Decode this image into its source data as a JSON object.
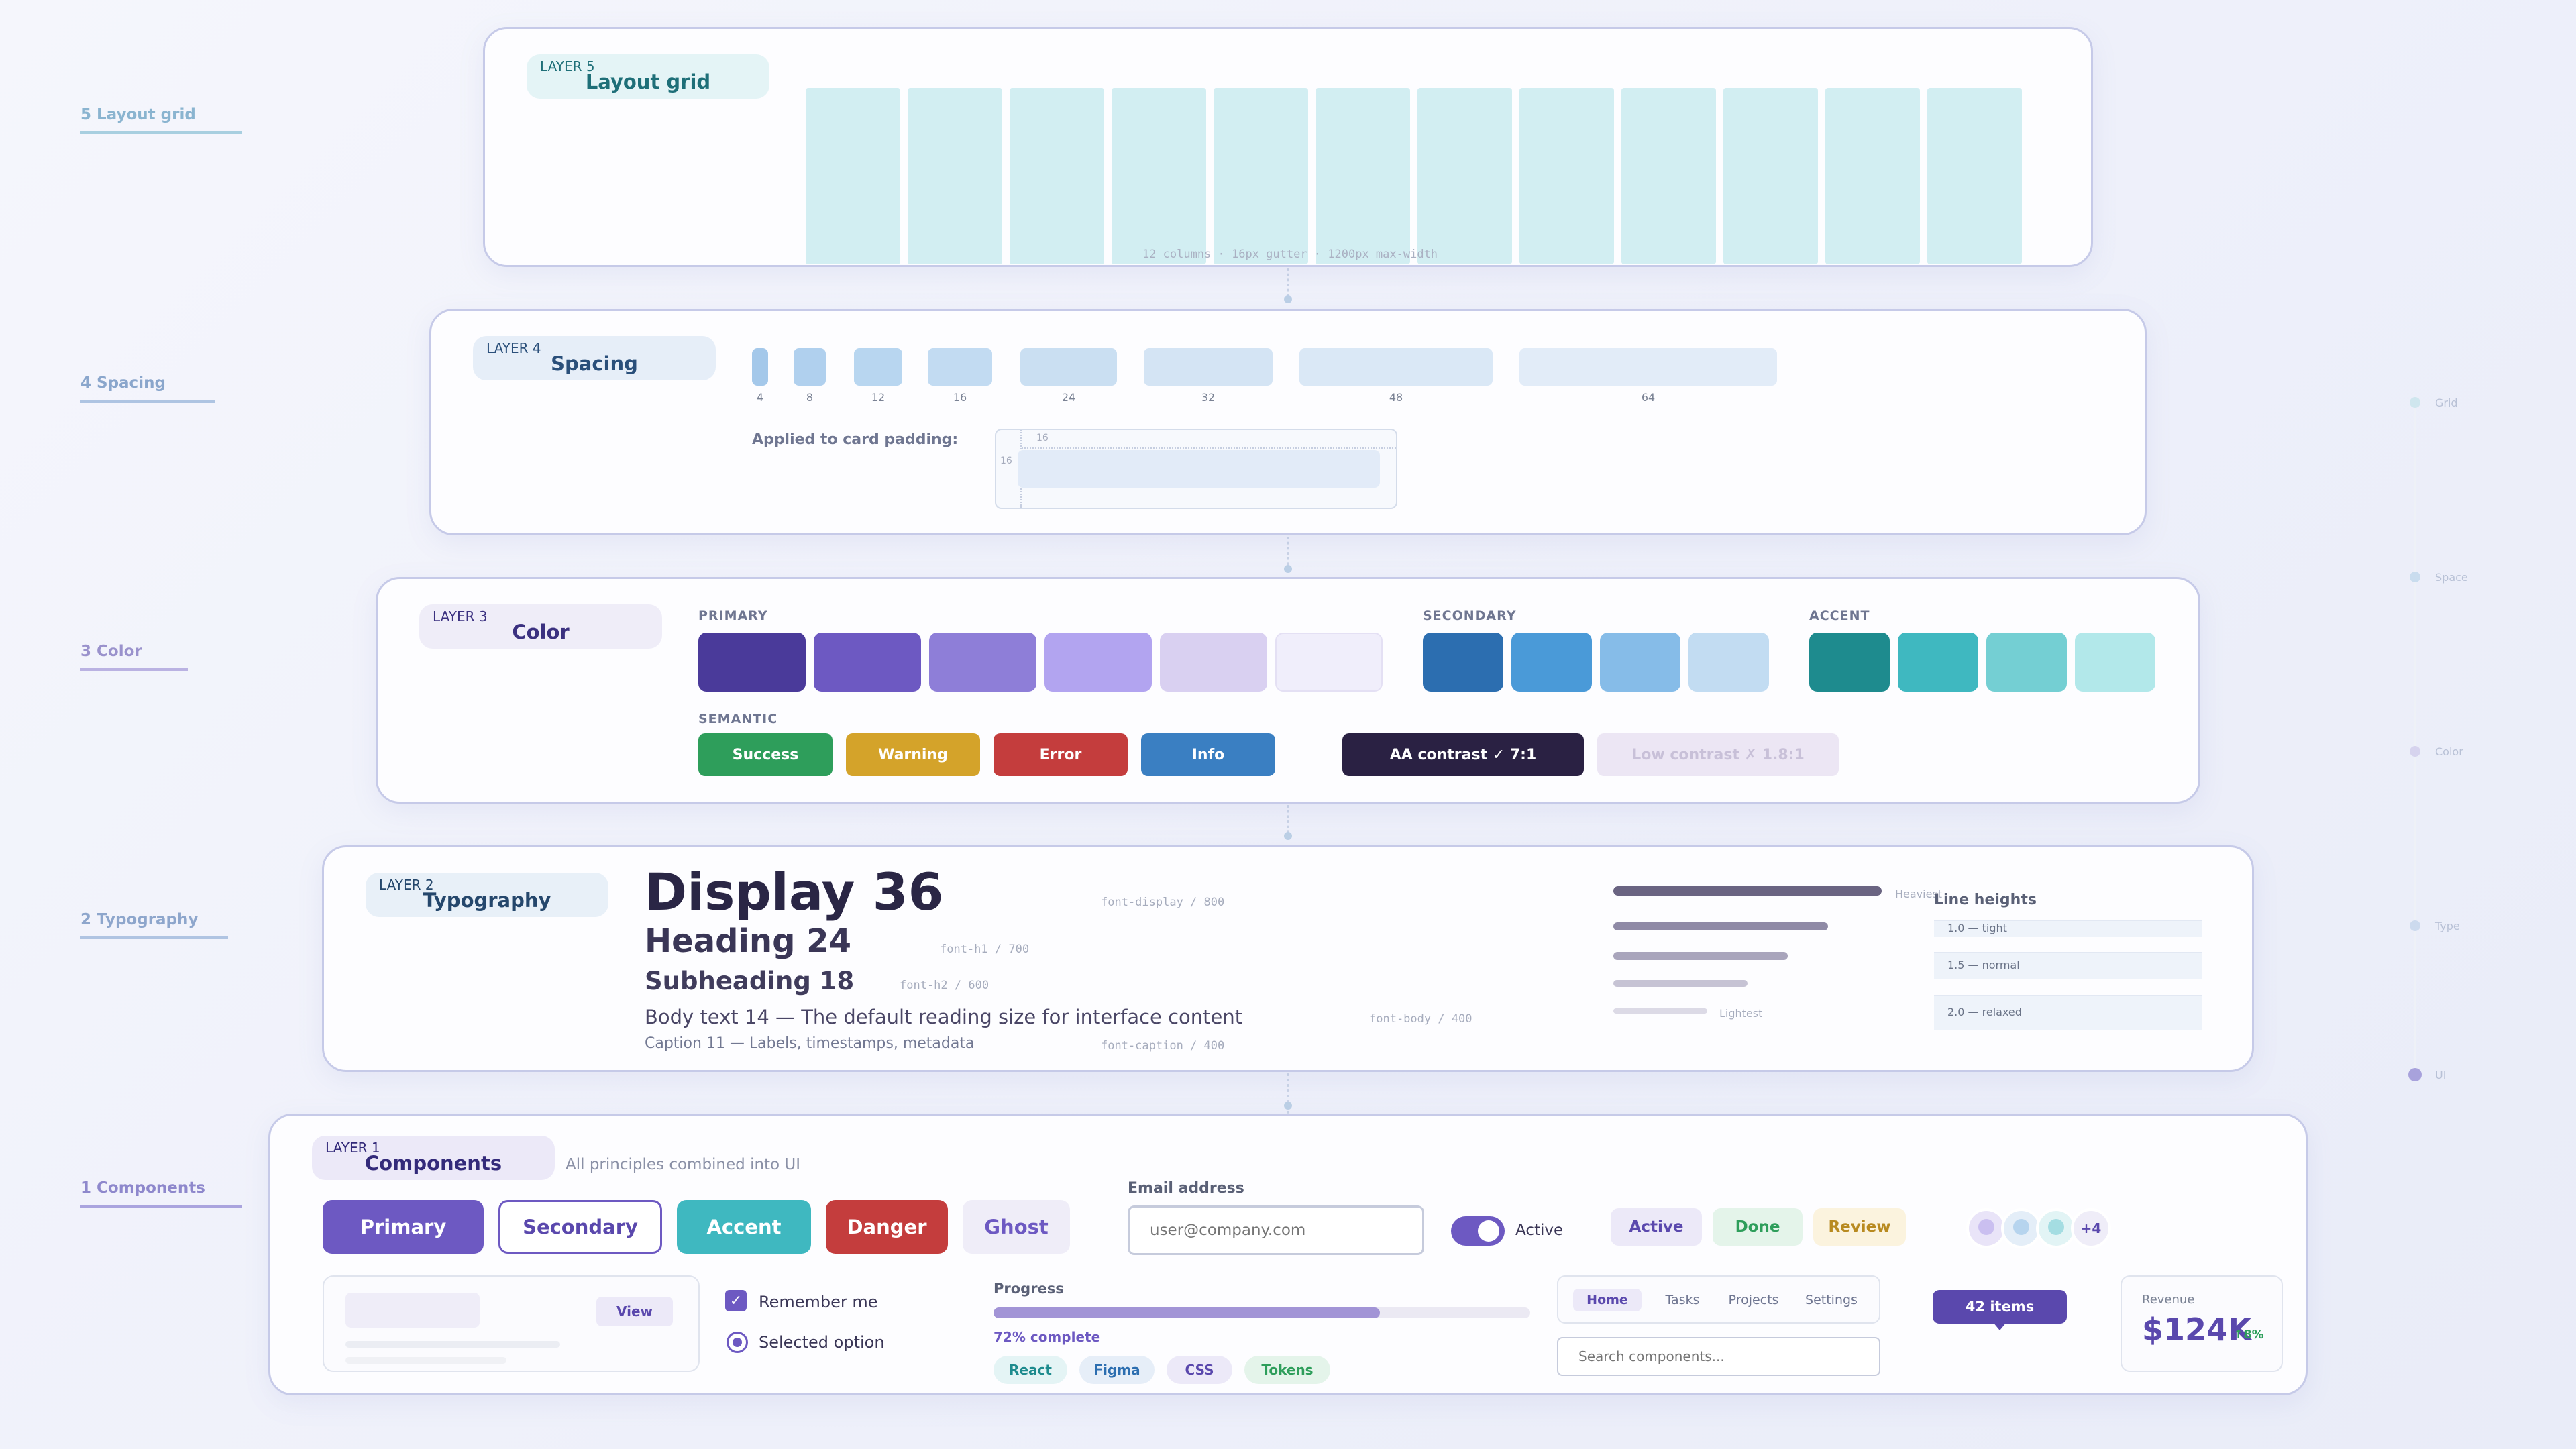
{
  "sidebar": {
    "labels": [
      "5 Layout grid",
      "4 Spacing",
      "3 Color",
      "2 Typography",
      "1 Components"
    ]
  },
  "rightnav": [
    "Grid",
    "Space",
    "Color",
    "Type",
    "UI"
  ],
  "layer5": {
    "tag_small": "LAYER 5",
    "tag_title": "Layout grid",
    "columns": 12,
    "caption": "12 columns · 16px gutter · 1200px max-width"
  },
  "layer4": {
    "tag_small": "LAYER 4",
    "tag_title": "Spacing",
    "scale": [
      "4",
      "8",
      "12",
      "16",
      "24",
      "32",
      "48",
      "64"
    ],
    "applied_label": "Applied to card padding:",
    "pad_top": "16",
    "pad_left": "16"
  },
  "layer3": {
    "tag_small": "LAYER 3",
    "tag_title": "Color",
    "primary_label": "PRIMARY",
    "secondary_label": "SECONDARY",
    "accent_label": "ACCENT",
    "semantic_label": "SEMANTIC",
    "primary": [
      "#4a3a9a",
      "#6d59c2",
      "#8e7ed8",
      "#b2a4f0",
      "#d9d0f1",
      "#f0eefb"
    ],
    "secondary": [
      "#2c6eb0",
      "#4a9ad8",
      "#86bce8",
      "#c2dcf2"
    ],
    "accent": [
      "#1e8b8e",
      "#3fb8c0",
      "#74cfd3",
      "#b2e8ea"
    ],
    "semantic": [
      {
        "label": "Success",
        "color": "#2e9e5b"
      },
      {
        "label": "Warning",
        "color": "#d4a32a"
      },
      {
        "label": "Error",
        "color": "#c43d3d"
      },
      {
        "label": "Info",
        "color": "#3a7fc2"
      }
    ],
    "contrast_good": "AA contrast ✓ 7:1",
    "contrast_bad": "Low contrast ✗ 1.8:1"
  },
  "layer2": {
    "tag_small": "LAYER 2",
    "tag_title": "Typography",
    "display": "Display 36",
    "display_spec": "font-display / 800",
    "h1": "Heading 24",
    "h1_spec": "font-h1 / 700",
    "h2": "Subheading 18",
    "h2_spec": "font-h2 / 600",
    "body": "Body text 14 — The default reading size for interface content",
    "body_spec": "font-body / 400",
    "caption": "Caption 11 — Labels, timestamps, metadata",
    "caption_spec": "font-caption / 400",
    "heaviest": "Heaviest",
    "lightest": "Lightest",
    "lh_title": "Line heights",
    "lh": [
      "1.0 — tight",
      "1.5 — normal",
      "2.0 — relaxed"
    ]
  },
  "layer1": {
    "tag_small": "LAYER 1",
    "tag_title": "Components",
    "subtitle": "All principles combined into UI",
    "buttons": {
      "primary": "Primary",
      "secondary": "Secondary",
      "accent": "Accent",
      "danger": "Danger",
      "ghost": "Ghost"
    },
    "email_label": "Email address",
    "email_placeholder": "user@company.com",
    "toggle_label": "Active",
    "toggle_on": true,
    "badges": [
      "Active",
      "Done",
      "Review"
    ],
    "avatar_more": "+4",
    "card_button": "View",
    "checkbox_label": "Remember me",
    "checkbox_checked": true,
    "radio_label": "Selected option",
    "progress_label": "Progress",
    "progress_value": 0.72,
    "progress_text": "72% complete",
    "chips": [
      "React",
      "Figma",
      "CSS",
      "Tokens"
    ],
    "tabs": [
      "Home",
      "Tasks",
      "Projects",
      "Settings"
    ],
    "active_tab": "Home",
    "search_placeholder": "Search components...",
    "tooltip": "42 items",
    "revenue_label": "Revenue",
    "revenue_value": "$124K",
    "revenue_delta": "↑8%"
  }
}
